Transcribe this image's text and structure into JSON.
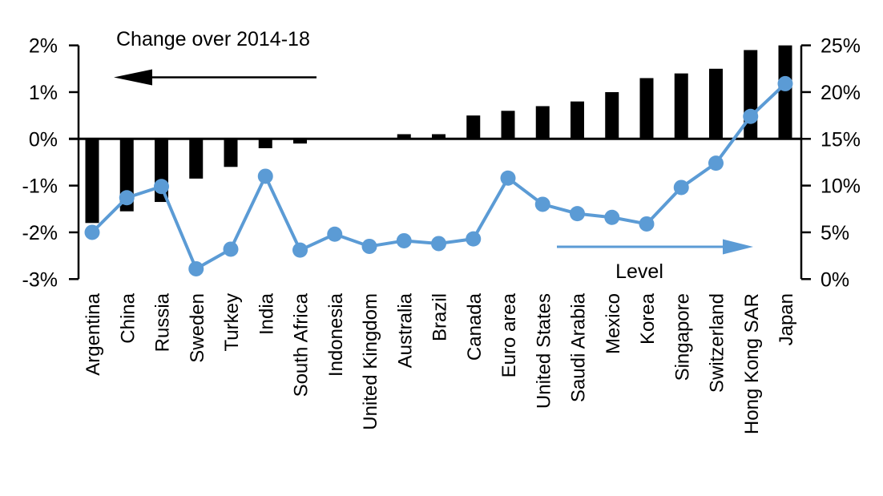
{
  "chart_data": {
    "type": "combo-bar-line",
    "categories": [
      "Argentina",
      "China",
      "Russia",
      "Sweden",
      "Turkey",
      "India",
      "South Africa",
      "Indonesia",
      "United Kingdom",
      "Australia",
      "Brazil",
      "Canada",
      "Euro area",
      "United States",
      "Saudi Arabia",
      "Mexico",
      "Korea",
      "Singapore",
      "Switzerland",
      "Hong Kong SAR",
      "Japan"
    ],
    "series": [
      {
        "name": "Change over 2014-18",
        "type": "bar",
        "axis": "left",
        "color": "#000000",
        "unit": "%",
        "values": [
          -1.8,
          -1.55,
          -1.35,
          -0.85,
          -0.6,
          -0.2,
          -0.1,
          0,
          0,
          0.1,
          0.1,
          0.5,
          0.6,
          0.7,
          0.8,
          1.0,
          1.3,
          1.4,
          1.5,
          1.9,
          2.0
        ]
      },
      {
        "name": "Level",
        "type": "line",
        "axis": "right",
        "color": "#5B9BD5",
        "unit": "%",
        "values": [
          5.0,
          8.7,
          9.9,
          1.1,
          3.2,
          11.0,
          3.1,
          4.8,
          3.5,
          4.1,
          3.8,
          4.3,
          10.8,
          8.0,
          7.0,
          6.6,
          5.9,
          9.8,
          12.4,
          17.4,
          20.9
        ]
      }
    ],
    "left_axis": {
      "tick_labels": [
        "2%",
        "1%",
        "0%",
        "-1%",
        "-2%",
        "-3%"
      ],
      "tick_values": [
        2,
        1,
        0,
        -1,
        -2,
        -3
      ],
      "range": [
        -3,
        2
      ]
    },
    "right_axis": {
      "tick_labels": [
        "25%",
        "20%",
        "15%",
        "10%",
        "5%",
        "0%"
      ],
      "tick_values": [
        25,
        20,
        15,
        10,
        5,
        0
      ],
      "range": [
        0,
        25
      ]
    },
    "annotations": [
      {
        "text": "Change over 2014-18",
        "arrow": "left",
        "color": "#000000"
      },
      {
        "text": "Level",
        "arrow": "right",
        "color": "#5B9BD5"
      }
    ],
    "grid": false,
    "legend_position": "in-plot-arrow-annotations"
  }
}
